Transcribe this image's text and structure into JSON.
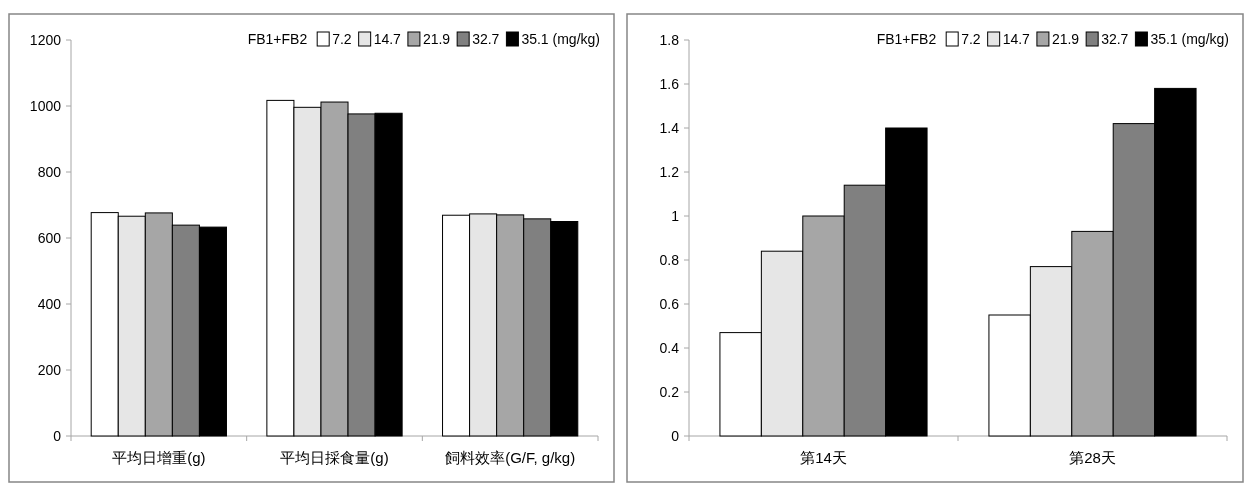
{
  "chart_data": [
    {
      "type": "bar",
      "categories": [
        "平均日增重(g)",
        "平均日採食量(g)",
        "飼料效率(G/F, g/kg)"
      ],
      "legend_title": "FB1+FB2",
      "legend": "top right",
      "ylim": [
        0,
        1200
      ],
      "yticks": [
        0,
        200,
        400,
        600,
        800,
        1000,
        1200
      ],
      "series": [
        {
          "name": "7.2",
          "color": "#ffffff",
          "values": [
            677,
            1017,
            669
          ]
        },
        {
          "name": "14.7",
          "color": "#e6e6e6",
          "values": [
            666,
            996,
            673
          ]
        },
        {
          "name": "21.9",
          "color": "#a6a6a6",
          "values": [
            676,
            1012,
            670
          ]
        },
        {
          "name": "32.7",
          "color": "#808080",
          "values": [
            639,
            976,
            658
          ]
        },
        {
          "name": "35.1 (mg/kg)",
          "color": "#000000",
          "values": [
            633,
            978,
            650
          ]
        }
      ]
    },
    {
      "type": "bar",
      "categories": [
        "第14天",
        "第28天"
      ],
      "legend_title": "FB1+FB2",
      "legend": "top right",
      "ylim": [
        0,
        1.8
      ],
      "yticks": [
        0,
        {
          "value": 0.2,
          "label": "0.2"
        },
        {
          "value": 0.4,
          "label": "0.4"
        },
        {
          "value": 0.6,
          "label": "0.6"
        },
        {
          "value": 0.8,
          "label": "0.8"
        },
        1,
        {
          "value": 1.2,
          "label": "1.2"
        },
        {
          "value": 1.4,
          "label": "1.4"
        },
        {
          "value": 1.6,
          "label": "1.6"
        },
        {
          "value": 1.8,
          "label": "1.8"
        }
      ],
      "series": [
        {
          "name": "7.2",
          "color": "#ffffff",
          "values": [
            0.47,
            0.55
          ]
        },
        {
          "name": "14.7",
          "color": "#e6e6e6",
          "values": [
            0.84,
            0.77
          ]
        },
        {
          "name": "21.9",
          "color": "#a6a6a6",
          "values": [
            1.0,
            0.93
          ]
        },
        {
          "name": "32.7",
          "color": "#808080",
          "values": [
            1.14,
            1.42
          ]
        },
        {
          "name": "35.1 (mg/kg)",
          "color": "#000000",
          "values": [
            1.4,
            1.58
          ]
        }
      ]
    }
  ]
}
